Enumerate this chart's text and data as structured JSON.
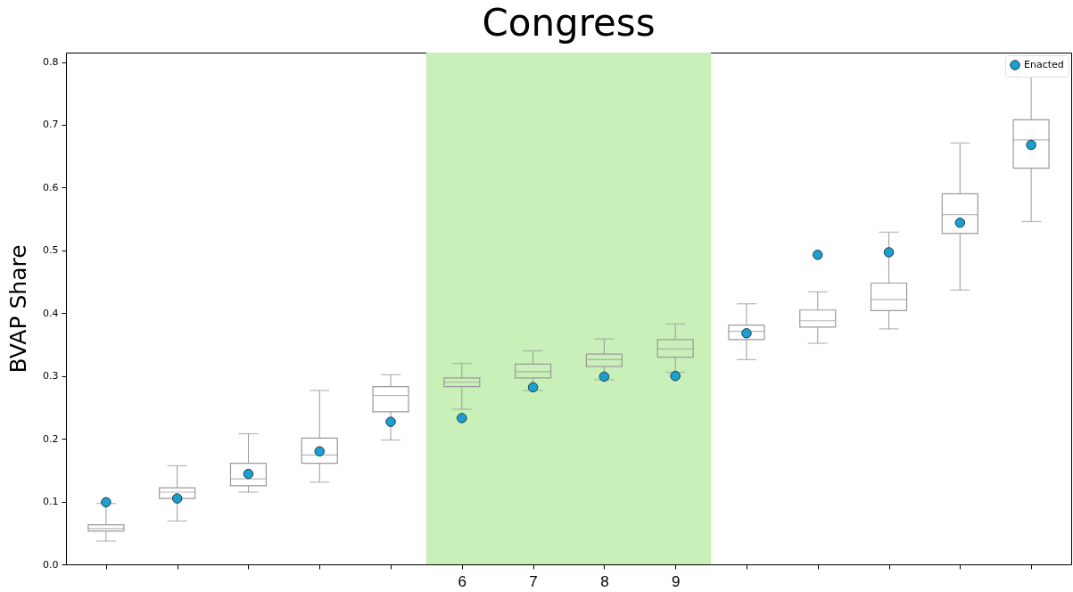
{
  "chart_data": {
    "type": "box",
    "title": "Congress",
    "ylabel": "BVAP Share",
    "categories": [
      null,
      null,
      null,
      null,
      null,
      "6",
      "7",
      "8",
      "9",
      null,
      null,
      null,
      null,
      null
    ],
    "boxes": [
      {
        "low": 0.037,
        "q1": 0.053,
        "median": 0.057,
        "q3": 0.063,
        "high": 0.097
      },
      {
        "low": 0.069,
        "q1": 0.105,
        "median": 0.115,
        "q3": 0.122,
        "high": 0.157
      },
      {
        "low": 0.115,
        "q1": 0.125,
        "median": 0.136,
        "q3": 0.161,
        "high": 0.208
      },
      {
        "low": 0.131,
        "q1": 0.161,
        "median": 0.174,
        "q3": 0.201,
        "high": 0.277
      },
      {
        "low": 0.198,
        "q1": 0.243,
        "median": 0.269,
        "q3": 0.283,
        "high": 0.302
      },
      {
        "low": 0.247,
        "q1": 0.283,
        "median": 0.29,
        "q3": 0.297,
        "high": 0.32
      },
      {
        "low": 0.277,
        "q1": 0.297,
        "median": 0.307,
        "q3": 0.319,
        "high": 0.34
      },
      {
        "low": 0.294,
        "q1": 0.315,
        "median": 0.326,
        "q3": 0.335,
        "high": 0.359
      },
      {
        "low": 0.306,
        "q1": 0.33,
        "median": 0.343,
        "q3": 0.358,
        "high": 0.383
      },
      {
        "low": 0.326,
        "q1": 0.358,
        "median": 0.371,
        "q3": 0.381,
        "high": 0.415
      },
      {
        "low": 0.352,
        "q1": 0.378,
        "median": 0.388,
        "q3": 0.405,
        "high": 0.434
      },
      {
        "low": 0.375,
        "q1": 0.404,
        "median": 0.422,
        "q3": 0.448,
        "high": 0.529
      },
      {
        "low": 0.437,
        "q1": 0.527,
        "median": 0.557,
        "q3": 0.59,
        "high": 0.671
      },
      {
        "low": 0.546,
        "q1": 0.631,
        "median": 0.676,
        "q3": 0.708,
        "high": 0.777
      }
    ],
    "color": "#9a9a9a",
    "series": [
      {
        "name": "Enacted",
        "type": "scatter",
        "color": "#1a9fd0",
        "values": [
          0.099,
          0.105,
          0.144,
          0.18,
          0.227,
          0.233,
          0.282,
          0.299,
          0.3,
          0.368,
          0.493,
          0.497,
          0.544,
          0.668
        ]
      }
    ],
    "bands": [
      {
        "axis": "x",
        "from": "6",
        "to": "9",
        "color": "#c8f0b8"
      }
    ],
    "ylim": [
      0,
      0.815
    ],
    "yticks": [
      {
        "value": 0,
        "label": "0.0"
      },
      0.1,
      0.2,
      0.3,
      0.4,
      0.5,
      0.6,
      0.7,
      0.8
    ],
    "legend": "top right",
    "marker": "circle",
    "grid": false
  }
}
